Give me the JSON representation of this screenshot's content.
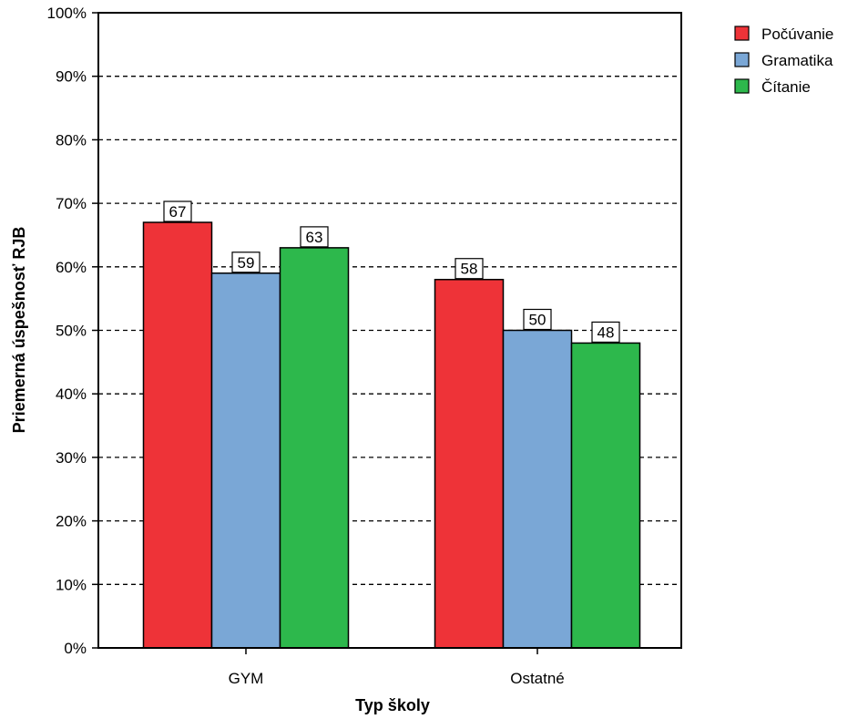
{
  "chart_data": {
    "type": "bar",
    "title": "",
    "xlabel": "Typ školy",
    "ylabel": "Priemerná úspešnosť RJB",
    "categories": [
      "GYM",
      "Ostatné"
    ],
    "series": [
      {
        "name": "Počúvanie",
        "color": "#ee3338",
        "values": [
          67,
          58
        ]
      },
      {
        "name": "Gramatika",
        "color": "#7aa7d6",
        "values": [
          59,
          50
        ]
      },
      {
        "name": "Čítanie",
        "color": "#2db84c",
        "values": [
          63,
          48
        ]
      }
    ],
    "data_labels": [
      [
        "67",
        "58"
      ],
      [
        "59",
        "50"
      ],
      [
        "63",
        "48"
      ]
    ],
    "ylim": [
      0,
      100
    ],
    "yticks": [
      "0%",
      "10%",
      "20%",
      "30%",
      "40%",
      "50%",
      "60%",
      "70%",
      "80%",
      "90%",
      "100%"
    ],
    "grid": "dashed horizontal",
    "legend_position": "top-right"
  }
}
